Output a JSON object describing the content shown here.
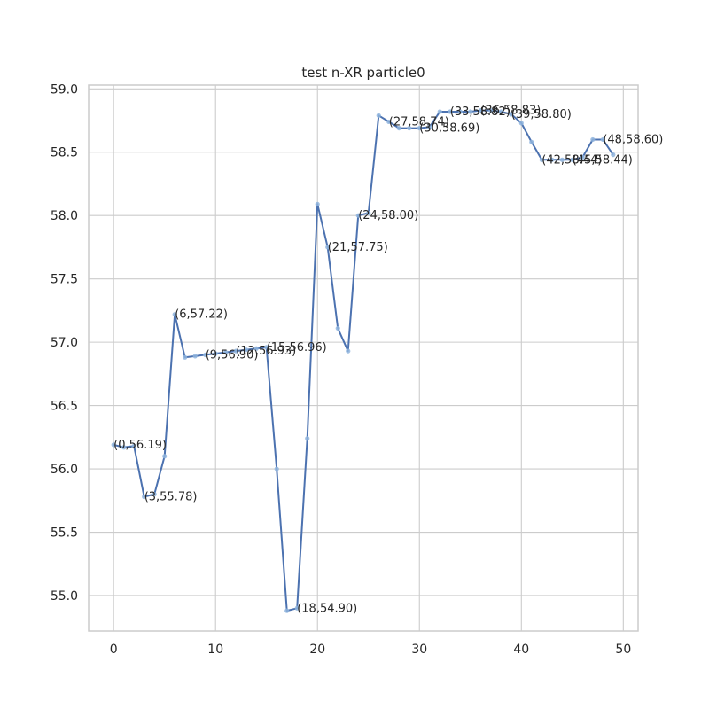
{
  "chart_data": {
    "type": "line",
    "title": "test n-XR particle0",
    "xlabel": "",
    "ylabel": "",
    "xlim": [
      -2.45,
      51.45
    ],
    "ylim": [
      54.72,
      59.03
    ],
    "grid": true,
    "x_ticks": [
      0,
      10,
      20,
      30,
      40,
      50
    ],
    "x_tick_labels": [
      "0",
      "10",
      "20",
      "30",
      "40",
      "50"
    ],
    "y_ticks": [
      55.0,
      55.5,
      56.0,
      56.5,
      57.0,
      57.5,
      58.0,
      58.5,
      59.0
    ],
    "y_tick_labels": [
      "55.0",
      "55.5",
      "56.0",
      "56.5",
      "57.0",
      "57.5",
      "58.0",
      "58.5",
      "59.0"
    ],
    "colors": {
      "line": "#4c72b0",
      "marker": "#8fb4dd"
    },
    "series": [
      {
        "x": [
          0,
          1,
          2,
          3,
          4,
          5,
          6,
          7,
          8,
          9,
          10,
          11,
          12,
          13,
          14,
          15,
          16,
          17,
          18,
          19,
          20,
          21,
          22,
          23,
          24,
          25,
          26,
          27,
          28,
          29,
          30,
          31,
          32,
          33,
          34,
          35,
          36,
          37,
          38,
          39,
          40,
          41,
          42,
          43,
          44,
          45,
          46,
          47,
          48,
          49
        ],
        "values": [
          56.19,
          56.17,
          56.18,
          55.78,
          55.8,
          56.1,
          57.22,
          56.88,
          56.89,
          56.9,
          56.91,
          56.92,
          56.93,
          56.94,
          56.95,
          56.96,
          56.0,
          54.88,
          54.9,
          56.24,
          58.09,
          57.75,
          57.11,
          56.93,
          58.0,
          58.02,
          58.79,
          58.74,
          58.69,
          58.69,
          58.69,
          58.7,
          58.82,
          58.82,
          58.82,
          58.82,
          58.83,
          58.83,
          58.82,
          58.8,
          58.73,
          58.58,
          58.44,
          58.44,
          58.44,
          58.44,
          58.46,
          58.6,
          58.6,
          58.48
        ]
      }
    ],
    "annotations": [
      {
        "x": 0,
        "y": 56.19,
        "text": "(0,56.19)"
      },
      {
        "x": 3,
        "y": 55.78,
        "text": "(3,55.78)"
      },
      {
        "x": 6,
        "y": 57.22,
        "text": "(6,57.22)"
      },
      {
        "x": 9,
        "y": 56.9,
        "text": "(9,56.90)"
      },
      {
        "x": 12,
        "y": 56.93,
        "text": "(12,56.93)"
      },
      {
        "x": 15,
        "y": 56.96,
        "text": "(15,56.96)"
      },
      {
        "x": 18,
        "y": 54.9,
        "text": "(18,54.90)"
      },
      {
        "x": 21,
        "y": 57.75,
        "text": "(21,57.75)"
      },
      {
        "x": 24,
        "y": 58.0,
        "text": "(24,58.00)"
      },
      {
        "x": 27,
        "y": 58.74,
        "text": "(27,58.74)"
      },
      {
        "x": 30,
        "y": 58.69,
        "text": "(30,58.69)"
      },
      {
        "x": 33,
        "y": 58.82,
        "text": "(33,58.82)"
      },
      {
        "x": 36,
        "y": 58.83,
        "text": "(36,58.83)"
      },
      {
        "x": 39,
        "y": 58.8,
        "text": "(39,58.80)"
      },
      {
        "x": 42,
        "y": 58.44,
        "text": "(42,58.44)"
      },
      {
        "x": 45,
        "y": 58.44,
        "text": "(45,58.44)"
      },
      {
        "x": 48,
        "y": 58.6,
        "text": "(48,58.60)"
      }
    ]
  }
}
